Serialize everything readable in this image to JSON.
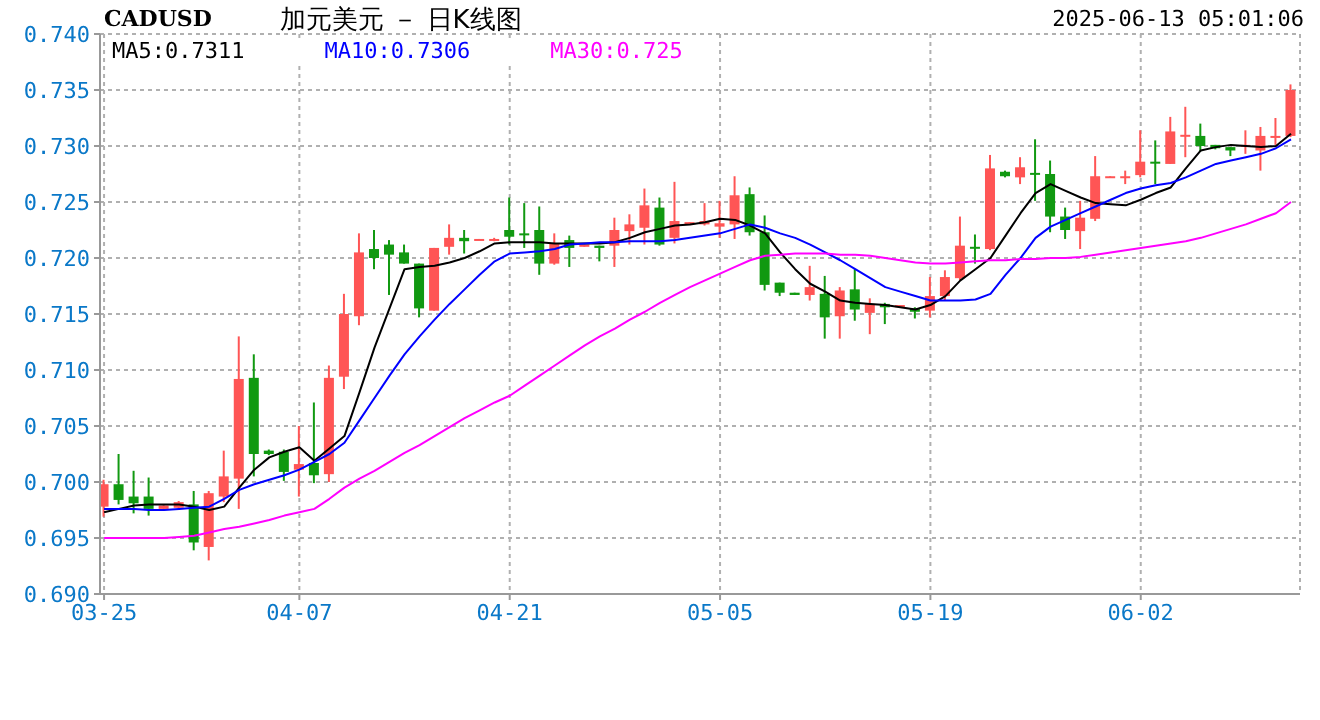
{
  "chart_data": {
    "type": "candlestick",
    "title": "加元美元 － 日K线图",
    "subtitle": "CADUSD",
    "annotations": [
      "2025-06-13 05:01:06"
    ],
    "categories": [
      "03-25",
      null,
      null,
      null,
      null,
      null,
      null,
      null,
      null,
      null,
      null,
      null,
      null,
      "04-07",
      null,
      null,
      null,
      null,
      null,
      null,
      null,
      null,
      null,
      null,
      null,
      null,
      null,
      "04-21",
      null,
      null,
      null,
      null,
      null,
      null,
      null,
      null,
      null,
      null,
      null,
      null,
      null,
      "05-05",
      null,
      null,
      null,
      null,
      null,
      null,
      null,
      null,
      null,
      null,
      null,
      null,
      null,
      "05-19",
      null,
      null,
      null,
      null,
      null,
      null,
      null,
      null,
      null,
      null,
      null,
      null,
      null,
      "06-02",
      null,
      null,
      null,
      null,
      null,
      null,
      null,
      null,
      null,
      null
    ],
    "ohlc": [
      [
        0.6978,
        0.7002,
        0.6969,
        0.6998
      ],
      [
        0.6998,
        0.7025,
        0.698,
        0.6984
      ],
      [
        0.6987,
        0.701,
        0.6972,
        0.6981
      ],
      [
        0.6987,
        0.7004,
        0.697,
        0.6976
      ],
      [
        0.6976,
        0.698,
        0.6975,
        0.6979
      ],
      [
        0.6977,
        0.6983,
        0.6976,
        0.6982
      ],
      [
        0.698,
        0.6992,
        0.6939,
        0.6946
      ],
      [
        0.6942,
        0.6992,
        0.693,
        0.699
      ],
      [
        0.6987,
        0.7028,
        0.6982,
        0.7005
      ],
      [
        0.7003,
        0.713,
        0.6976,
        0.7092
      ],
      [
        0.7093,
        0.7114,
        0.7005,
        0.7025
      ],
      [
        0.7028,
        0.7029,
        0.7024,
        0.7025
      ],
      [
        0.7027,
        0.7029,
        0.7001,
        0.7009
      ],
      [
        0.7011,
        0.705,
        0.6987,
        0.7016
      ],
      [
        0.7017,
        0.7071,
        0.6999,
        0.7006
      ],
      [
        0.7007,
        0.7104,
        0.7,
        0.7093
      ],
      [
        0.7094,
        0.7168,
        0.7083,
        0.715
      ],
      [
        0.7148,
        0.7222,
        0.714,
        0.7205
      ],
      [
        0.7208,
        0.7225,
        0.719,
        0.72
      ],
      [
        0.7212,
        0.7216,
        0.7167,
        0.7203
      ],
      [
        0.7205,
        0.7212,
        0.7195,
        0.7195
      ],
      [
        0.7195,
        0.7195,
        0.7147,
        0.7155
      ],
      [
        0.7153,
        0.7209,
        0.7153,
        0.7209
      ],
      [
        0.721,
        0.723,
        0.7203,
        0.7218
      ],
      [
        0.7218,
        0.7225,
        0.7204,
        0.7215
      ],
      [
        0.7216,
        0.7217,
        0.7216,
        0.7217
      ],
      [
        0.7216,
        0.7218,
        0.7215,
        0.7217
      ],
      [
        0.7225,
        0.7254,
        0.7212,
        0.7219
      ],
      [
        0.7222,
        0.7249,
        0.7209,
        0.7221
      ],
      [
        0.7225,
        0.7246,
        0.7185,
        0.7195
      ],
      [
        0.7195,
        0.7222,
        0.7194,
        0.7213
      ],
      [
        0.7216,
        0.722,
        0.7192,
        0.7209
      ],
      [
        0.721,
        0.7212,
        0.721,
        0.7212
      ],
      [
        0.7211,
        0.7211,
        0.7197,
        0.7209
      ],
      [
        0.7211,
        0.7236,
        0.7192,
        0.7225
      ],
      [
        0.7224,
        0.7239,
        0.7212,
        0.723
      ],
      [
        0.7227,
        0.7262,
        0.7212,
        0.7247
      ],
      [
        0.7245,
        0.7254,
        0.7211,
        0.7212
      ],
      [
        0.7218,
        0.7268,
        0.7213,
        0.7233
      ],
      [
        0.7231,
        0.7232,
        0.7231,
        0.7232
      ],
      [
        0.723,
        0.7249,
        0.7229,
        0.7233
      ],
      [
        0.7228,
        0.7251,
        0.7218,
        0.7231
      ],
      [
        0.723,
        0.7273,
        0.7217,
        0.7256
      ],
      [
        0.7257,
        0.7263,
        0.722,
        0.7223
      ],
      [
        0.7223,
        0.7238,
        0.7171,
        0.7176
      ],
      [
        0.7178,
        0.7178,
        0.7166,
        0.7169
      ],
      [
        0.7169,
        0.7169,
        0.7167,
        0.7167
      ],
      [
        0.7167,
        0.7193,
        0.7162,
        0.7174
      ],
      [
        0.7168,
        0.7184,
        0.7128,
        0.7147
      ],
      [
        0.7148,
        0.7174,
        0.7128,
        0.7171
      ],
      [
        0.7172,
        0.719,
        0.7144,
        0.7154
      ],
      [
        0.7151,
        0.7164,
        0.7132,
        0.7159
      ],
      [
        0.7159,
        0.716,
        0.7141,
        0.7156
      ],
      [
        0.7156,
        0.7158,
        0.7156,
        0.7158
      ],
      [
        0.7155,
        0.7156,
        0.7146,
        0.7152
      ],
      [
        0.7153,
        0.7183,
        0.7147,
        0.7166
      ],
      [
        0.7166,
        0.7189,
        0.7162,
        0.7183
      ],
      [
        0.7182,
        0.7237,
        0.718,
        0.7211
      ],
      [
        0.721,
        0.7221,
        0.7195,
        0.7209
      ],
      [
        0.7208,
        0.7292,
        0.7207,
        0.728
      ],
      [
        0.7277,
        0.7278,
        0.7272,
        0.7273
      ],
      [
        0.7272,
        0.729,
        0.7266,
        0.7281
      ],
      [
        0.7276,
        0.7306,
        0.7251,
        0.7275
      ],
      [
        0.7275,
        0.7287,
        0.7223,
        0.7237
      ],
      [
        0.7237,
        0.7245,
        0.7217,
        0.7225
      ],
      [
        0.7224,
        0.7251,
        0.7208,
        0.7236
      ],
      [
        0.7235,
        0.7291,
        0.7233,
        0.7273
      ],
      [
        0.7272,
        0.7273,
        0.7272,
        0.7273
      ],
      [
        0.7272,
        0.7278,
        0.7266,
        0.7273
      ],
      [
        0.7274,
        0.7314,
        0.7272,
        0.7286
      ],
      [
        0.7286,
        0.7305,
        0.7266,
        0.7285
      ],
      [
        0.7284,
        0.7326,
        0.7284,
        0.7313
      ],
      [
        0.7309,
        0.7335,
        0.729,
        0.731
      ],
      [
        0.7309,
        0.732,
        0.7295,
        0.73
      ],
      [
        0.7301,
        0.7301,
        0.7297,
        0.7298
      ],
      [
        0.7299,
        0.7299,
        0.7291,
        0.7296
      ],
      [
        0.73,
        0.7314,
        0.7293,
        0.7301
      ],
      [
        0.7296,
        0.7317,
        0.7278,
        0.7309
      ],
      [
        0.7308,
        0.7325,
        0.7301,
        0.7309
      ],
      [
        0.7309,
        0.7355,
        0.7308,
        0.735
      ]
    ],
    "colors": [
      "#ff5555",
      "#119911",
      "#119911",
      "#119911",
      "#ff5555",
      "#ff5555",
      "#119911",
      "#ff5555",
      "#ff5555",
      "#ff5555",
      "#119911",
      "#119911",
      "#119911",
      "#ff5555",
      "#119911",
      "#ff5555",
      "#ff5555",
      "#ff5555",
      "#119911",
      "#119911",
      "#119911",
      "#119911",
      "#ff5555",
      "#ff5555",
      "#119911",
      "#ff5555",
      "#ff5555",
      "#119911",
      "#119911",
      "#119911",
      "#ff5555",
      "#119911",
      "#ff5555",
      "#119911",
      "#ff5555",
      "#ff5555",
      "#ff5555",
      "#119911",
      "#ff5555",
      "#ff5555",
      "#ff5555",
      "#ff5555",
      "#ff5555",
      "#119911",
      "#119911",
      "#119911",
      "#119911",
      "#ff5555",
      "#119911",
      "#ff5555",
      "#119911",
      "#ff5555",
      "#119911",
      "#ff5555",
      "#119911",
      "#ff5555",
      "#ff5555",
      "#ff5555",
      "#119911",
      "#ff5555",
      "#119911",
      "#ff5555",
      "#119911",
      "#119911",
      "#119911",
      "#ff5555",
      "#ff5555",
      "#ff5555",
      "#ff5555",
      "#ff5555",
      "#119911",
      "#ff5555",
      "#ff5555",
      "#119911",
      "#119911",
      "#119911",
      "#ff5555",
      "#ff5555",
      "#ff5555",
      "#ff5555"
    ],
    "series": [
      {
        "type": "line",
        "name": "MA5:0.7311",
        "color": "#000000",
        "values": [
          0.6973,
          0.6976,
          0.6979,
          0.698,
          0.698,
          0.698,
          0.6978,
          0.6975,
          0.6978,
          0.6995,
          0.7011,
          0.7022,
          0.7027,
          0.7031,
          0.7019,
          0.703,
          0.7041,
          0.708,
          0.712,
          0.7155,
          0.719,
          0.7192,
          0.7193,
          0.7196,
          0.72,
          0.7206,
          0.7213,
          0.7214,
          0.7214,
          0.7214,
          0.7213,
          0.7213,
          0.7213,
          0.7213,
          0.7214,
          0.7218,
          0.7223,
          0.7226,
          0.7229,
          0.723,
          0.7232,
          0.7235,
          0.7234,
          0.7229,
          0.7222,
          0.7205,
          0.719,
          0.7177,
          0.717,
          0.7162,
          0.716,
          0.7159,
          0.7158,
          0.7156,
          0.7154,
          0.7158,
          0.7166,
          0.718,
          0.719,
          0.72,
          0.722,
          0.724,
          0.7258,
          0.7266,
          0.726,
          0.7254,
          0.7249,
          0.7248,
          0.7247,
          0.7252,
          0.7258,
          0.7263,
          0.728,
          0.7296,
          0.7299,
          0.7301,
          0.73,
          0.7299,
          0.73,
          0.7311
        ]
      },
      {
        "type": "line",
        "name": "MA10:0.7306",
        "color": "#0000ff",
        "values": [
          0.6976,
          0.6976,
          0.6976,
          0.6975,
          0.6975,
          0.6976,
          0.6977,
          0.6978,
          0.6985,
          0.6993,
          0.6998,
          0.7002,
          0.7006,
          0.7011,
          0.7018,
          0.7025,
          0.7035,
          0.7055,
          0.7075,
          0.7095,
          0.7114,
          0.713,
          0.7145,
          0.7159,
          0.7172,
          0.7185,
          0.7197,
          0.7204,
          0.7205,
          0.7206,
          0.7208,
          0.7212,
          0.7213,
          0.7214,
          0.7214,
          0.7215,
          0.7215,
          0.7215,
          0.7216,
          0.7218,
          0.722,
          0.7222,
          0.7226,
          0.723,
          0.7227,
          0.7222,
          0.7218,
          0.7212,
          0.7205,
          0.7198,
          0.719,
          0.7182,
          0.7174,
          0.717,
          0.7166,
          0.7162,
          0.7162,
          0.7162,
          0.7163,
          0.7168,
          0.7185,
          0.72,
          0.7218,
          0.7228,
          0.7234,
          0.724,
          0.7246,
          0.7252,
          0.7258,
          0.7262,
          0.7265,
          0.7267,
          0.7272,
          0.7278,
          0.7284,
          0.7287,
          0.729,
          0.7293,
          0.7298,
          0.7306
        ]
      },
      {
        "type": "line",
        "name": "MA30:0.725",
        "color": "#ff00ff",
        "values": [
          0.695,
          0.695,
          0.695,
          0.695,
          0.695,
          0.6951,
          0.6952,
          0.6955,
          0.6958,
          0.696,
          0.6963,
          0.6966,
          0.697,
          0.6973,
          0.6976,
          0.6985,
          0.6995,
          0.7003,
          0.701,
          0.7018,
          0.7026,
          0.7033,
          0.7041,
          0.7049,
          0.7057,
          0.7064,
          0.7071,
          0.7077,
          0.7086,
          0.7095,
          0.7104,
          0.7113,
          0.7122,
          0.713,
          0.7137,
          0.7145,
          0.7152,
          0.716,
          0.7167,
          0.7174,
          0.718,
          0.7186,
          0.7192,
          0.7198,
          0.7202,
          0.7203,
          0.7204,
          0.7204,
          0.7204,
          0.7203,
          0.7203,
          0.7202,
          0.72,
          0.7198,
          0.7196,
          0.7195,
          0.7195,
          0.7196,
          0.7197,
          0.7198,
          0.7198,
          0.7199,
          0.7199,
          0.72,
          0.72,
          0.7201,
          0.7203,
          0.7205,
          0.7207,
          0.7209,
          0.7211,
          0.7213,
          0.7215,
          0.7218,
          0.7222,
          0.7226,
          0.723,
          0.7235,
          0.724,
          0.725
        ]
      }
    ],
    "ylim": [
      0.69,
      0.74
    ],
    "yticks": [
      {
        "value": 0.69,
        "label": "0.690"
      },
      {
        "value": 0.695,
        "label": "0.695"
      },
      {
        "value": 0.7,
        "label": "0.700"
      },
      {
        "value": 0.705,
        "label": "0.705"
      },
      {
        "value": 0.71,
        "label": "0.710"
      },
      {
        "value": 0.715,
        "label": "0.715"
      },
      {
        "value": 0.72,
        "label": "0.720"
      },
      {
        "value": 0.725,
        "label": "0.725"
      },
      {
        "value": 0.73,
        "label": "0.730"
      },
      {
        "value": 0.735,
        "label": "0.735"
      },
      {
        "value": 0.74,
        "label": "0.740"
      }
    ],
    "grid": true,
    "legend": "top left"
  }
}
